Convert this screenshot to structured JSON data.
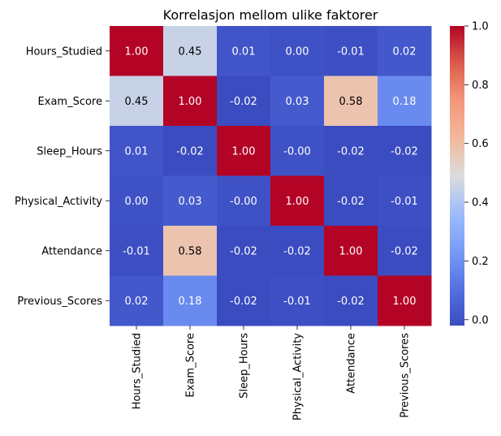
{
  "chart_data": {
    "type": "heatmap",
    "title": "Korrelasjon mellom ulike faktorer",
    "xlabel": "",
    "ylabel": "",
    "x_categories": [
      "Hours_Studied",
      "Exam_Score",
      "Sleep_Hours",
      "Physical_Activity",
      "Attendance",
      "Previous_Scores"
    ],
    "y_categories": [
      "Hours_Studied",
      "Exam_Score",
      "Sleep_Hours",
      "Physical_Activity",
      "Attendance",
      "Previous_Scores"
    ],
    "values": [
      [
        1.0,
        0.45,
        0.01,
        0.0,
        -0.01,
        0.02
      ],
      [
        0.45,
        1.0,
        -0.02,
        0.03,
        0.58,
        0.18
      ],
      [
        0.01,
        -0.02,
        1.0,
        -0.0,
        -0.02,
        -0.02
      ],
      [
        0.0,
        0.03,
        -0.0,
        1.0,
        -0.02,
        -0.01
      ],
      [
        -0.01,
        0.58,
        -0.02,
        -0.02,
        1.0,
        -0.02
      ],
      [
        0.02,
        0.18,
        -0.02,
        -0.01,
        -0.02,
        1.0
      ]
    ],
    "value_labels": [
      [
        "1.00",
        "0.45",
        "0.01",
        "0.00",
        "-0.01",
        "0.02"
      ],
      [
        "0.45",
        "1.00",
        "-0.02",
        "0.03",
        "0.58",
        "0.18"
      ],
      [
        "0.01",
        "-0.02",
        "1.00",
        "-0.00",
        "-0.02",
        "-0.02"
      ],
      [
        "0.00",
        "0.03",
        "-0.00",
        "1.00",
        "-0.02",
        "-0.01"
      ],
      [
        "-0.01",
        "0.58",
        "-0.02",
        "-0.02",
        "1.00",
        "-0.02"
      ],
      [
        "0.02",
        "0.18",
        "-0.02",
        "-0.01",
        "-0.02",
        "1.00"
      ]
    ],
    "colormap": "coolwarm",
    "color_range": [
      -0.02,
      1.0
    ],
    "colorbar_ticks": [
      "0.0",
      "0.2",
      "0.4",
      "0.6",
      "0.8",
      "1.0"
    ],
    "colorbar_tick_values": [
      0.0,
      0.2,
      0.4,
      0.6,
      0.8,
      1.0
    ],
    "annotation_colors": {
      "dark": "#000000",
      "light": "#ffffff"
    },
    "grid": false,
    "legend": "colorbar-right"
  }
}
